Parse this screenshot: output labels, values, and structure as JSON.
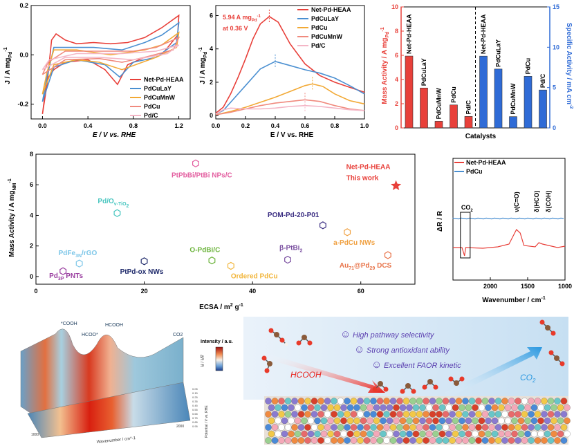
{
  "chart_data": [
    {
      "id": "cv",
      "type": "line",
      "xlabel": "E / V vs. RHE",
      "ylabel": "J / A mg_Pd^-1",
      "xlim": [
        -0.1,
        1.3
      ],
      "ylim": [
        -0.26,
        0.2
      ],
      "xticks": [
        0.0,
        0.4,
        0.8,
        1.2
      ],
      "yticks": [
        -0.2,
        0.0,
        0.2
      ],
      "series": [
        {
          "name": "Net-Pd-HEAA",
          "color": "#e8403a",
          "points": [
            [
              0,
              -0.24
            ],
            [
              0.04,
              -0.12
            ],
            [
              0.08,
              0.06
            ],
            [
              0.12,
              0.085
            ],
            [
              0.2,
              0.06
            ],
            [
              0.3,
              0.045
            ],
            [
              0.45,
              0.05
            ],
            [
              0.6,
              0.045
            ],
            [
              0.75,
              0.05
            ],
            [
              0.9,
              0.07
            ],
            [
              1.05,
              0.11
            ],
            [
              1.2,
              0.16
            ],
            [
              1.19,
              0.08
            ],
            [
              1.05,
              0.0
            ],
            [
              0.9,
              -0.01
            ],
            [
              0.75,
              -0.04
            ],
            [
              0.66,
              -0.12
            ],
            [
              0.55,
              -0.06
            ],
            [
              0.4,
              -0.02
            ],
            [
              0.2,
              -0.03
            ],
            [
              0.1,
              -0.06
            ],
            [
              0.04,
              -0.1
            ],
            [
              0,
              -0.24
            ]
          ]
        },
        {
          "name": "PdCuLaY",
          "color": "#4a8fd1",
          "points": [
            [
              0,
              -0.19
            ],
            [
              0.04,
              -0.09
            ],
            [
              0.1,
              0.03
            ],
            [
              0.25,
              0.03
            ],
            [
              0.45,
              0.03
            ],
            [
              0.7,
              0.02
            ],
            [
              0.9,
              0.05
            ],
            [
              1.05,
              0.08
            ],
            [
              1.2,
              0.13
            ],
            [
              1.18,
              0.05
            ],
            [
              1.0,
              -0.01
            ],
            [
              0.8,
              -0.03
            ],
            [
              0.68,
              -0.09
            ],
            [
              0.55,
              -0.04
            ],
            [
              0.3,
              -0.02
            ],
            [
              0.1,
              -0.05
            ],
            [
              0,
              -0.19
            ]
          ]
        },
        {
          "name": "PdCuMnW",
          "color": "#f2a935",
          "points": [
            [
              0,
              -0.16
            ],
            [
              0.04,
              -0.07
            ],
            [
              0.1,
              0.02
            ],
            [
              0.3,
              0.02
            ],
            [
              0.6,
              0.0
            ],
            [
              0.9,
              0.02
            ],
            [
              1.05,
              0.04
            ],
            [
              1.2,
              0.09
            ],
            [
              1.18,
              0.03
            ],
            [
              1.0,
              -0.01
            ],
            [
              0.7,
              -0.06
            ],
            [
              0.5,
              -0.03
            ],
            [
              0.3,
              -0.02
            ],
            [
              0.1,
              -0.04
            ],
            [
              0,
              -0.16
            ]
          ]
        },
        {
          "name": "PdCu",
          "color": "#f08a7e",
          "points": [
            [
              0,
              -0.08
            ],
            [
              0.05,
              -0.03
            ],
            [
              0.2,
              0.015
            ],
            [
              0.5,
              0.015
            ],
            [
              0.8,
              0.015
            ],
            [
              1.0,
              0.03
            ],
            [
              1.2,
              0.07
            ],
            [
              1.15,
              0.02
            ],
            [
              0.9,
              -0.01
            ],
            [
              0.7,
              -0.03
            ],
            [
              0.5,
              -0.015
            ],
            [
              0.2,
              -0.02
            ],
            [
              0,
              -0.08
            ]
          ]
        },
        {
          "name": "Pd/C",
          "color": "#f4b6c6",
          "points": [
            [
              0,
              -0.06
            ],
            [
              0.06,
              -0.02
            ],
            [
              0.3,
              0.005
            ],
            [
              0.7,
              0.005
            ],
            [
              1.0,
              0.015
            ],
            [
              1.2,
              0.04
            ],
            [
              1.1,
              0.005
            ],
            [
              0.8,
              -0.02
            ],
            [
              0.5,
              -0.01
            ],
            [
              0.2,
              -0.01
            ],
            [
              0,
              -0.06
            ]
          ]
        }
      ]
    },
    {
      "id": "lsv",
      "type": "line",
      "xlabel": "E / V vs. RHE",
      "ylabel": "J / A mg_Pd^-1",
      "xlim": [
        0,
        1.0
      ],
      "ylim": [
        -0.2,
        6.6
      ],
      "xticks": [
        0.0,
        0.2,
        0.4,
        0.6,
        0.8,
        1.0
      ],
      "yticks": [
        0,
        2,
        4,
        6
      ],
      "annotation": [
        "5.94 A mg_Pd^-1",
        "at 0.36 V"
      ],
      "series": [
        {
          "name": "Net-Pd-HEAA",
          "color": "#e8403a",
          "points": [
            [
              0,
              0.15
            ],
            [
              0.05,
              0.5
            ],
            [
              0.1,
              1.3
            ],
            [
              0.15,
              2.3
            ],
            [
              0.2,
              3.4
            ],
            [
              0.25,
              4.6
            ],
            [
              0.3,
              5.5
            ],
            [
              0.36,
              5.94
            ],
            [
              0.42,
              5.6
            ],
            [
              0.5,
              4.3
            ],
            [
              0.6,
              3.1
            ],
            [
              0.7,
              2.4
            ],
            [
              0.8,
              2.0
            ],
            [
              0.9,
              1.7
            ],
            [
              1.0,
              1.4
            ]
          ]
        },
        {
          "name": "PdCuLaY",
          "color": "#4a8fd1",
          "points": [
            [
              0,
              0.1
            ],
            [
              0.05,
              0.3
            ],
            [
              0.1,
              0.8
            ],
            [
              0.2,
              1.8
            ],
            [
              0.3,
              2.8
            ],
            [
              0.4,
              3.25
            ],
            [
              0.5,
              3.0
            ],
            [
              0.6,
              2.75
            ],
            [
              0.7,
              2.55
            ],
            [
              0.8,
              2.25
            ],
            [
              0.9,
              1.8
            ],
            [
              1.0,
              1.3
            ]
          ]
        },
        {
          "name": "PdCu",
          "color": "#f2a935",
          "points": [
            [
              0,
              0.05
            ],
            [
              0.1,
              0.25
            ],
            [
              0.2,
              0.5
            ],
            [
              0.3,
              0.8
            ],
            [
              0.4,
              1.1
            ],
            [
              0.5,
              1.45
            ],
            [
              0.6,
              1.8
            ],
            [
              0.65,
              1.9
            ],
            [
              0.72,
              1.75
            ],
            [
              0.8,
              1.3
            ],
            [
              0.9,
              0.9
            ],
            [
              1.0,
              0.7
            ]
          ]
        },
        {
          "name": "PdCuMnW",
          "color": "#f08a7e",
          "points": [
            [
              0,
              0.05
            ],
            [
              0.1,
              0.2
            ],
            [
              0.2,
              0.4
            ],
            [
              0.3,
              0.6
            ],
            [
              0.4,
              0.75
            ],
            [
              0.5,
              0.85
            ],
            [
              0.6,
              0.95
            ],
            [
              0.7,
              0.85
            ],
            [
              0.8,
              0.6
            ],
            [
              0.9,
              0.4
            ],
            [
              1.0,
              0.3
            ]
          ]
        },
        {
          "name": "Pd/C",
          "color": "#f4b6c6",
          "points": [
            [
              0,
              0.1
            ],
            [
              0.05,
              0.35
            ],
            [
              0.1,
              0.45
            ],
            [
              0.2,
              0.4
            ],
            [
              0.3,
              0.4
            ],
            [
              0.4,
              0.45
            ],
            [
              0.5,
              0.55
            ],
            [
              0.6,
              0.6
            ],
            [
              0.7,
              0.55
            ],
            [
              0.8,
              0.45
            ],
            [
              0.9,
              0.35
            ],
            [
              1.0,
              0.3
            ]
          ]
        }
      ]
    },
    {
      "id": "activity",
      "type": "bar",
      "xlabel": "Catalysts",
      "ylabel_left": "Mass Activity / A mg_Pd^-1",
      "ylabel_right": "Specific Activity / mA cm^-2",
      "ylim_left": [
        0,
        10
      ],
      "ylim_right": [
        0,
        15
      ],
      "yticks_left": [
        0,
        2,
        4,
        6,
        8,
        10
      ],
      "yticks_right": [
        0,
        5,
        10,
        15
      ],
      "mass": {
        "color": "#e8403a",
        "categories": [
          "Net-Pd-HEAA",
          "PdCuLaY",
          "PdCuMnW",
          "PdCu",
          "Pd/C"
        ],
        "values": [
          5.94,
          3.3,
          0.55,
          1.9,
          0.95
        ]
      },
      "specific": {
        "color": "#2f6bd6",
        "categories": [
          "Net-Pd-HEAA",
          "PdCuLaY",
          "PdCuMnW",
          "PdCu",
          "Pd/C"
        ],
        "values": [
          8.9,
          7.3,
          1.4,
          6.4,
          4.7
        ]
      }
    },
    {
      "id": "ecsa",
      "type": "scatter",
      "xlabel": "ECSA / m^2 g^-1",
      "ylabel": "Mass Activity / A mg_NM^-1",
      "xlim": [
        0,
        70
      ],
      "ylim": [
        -0.5,
        8
      ],
      "xticks": [
        0,
        20,
        40,
        60
      ],
      "yticks": [
        0,
        2,
        4,
        6,
        8
      ],
      "points": [
        {
          "label": "Net-Pd-HEAA",
          "sub": "This work",
          "x": 66.5,
          "y": 5.94,
          "color": "#e8403a",
          "marker": "star"
        },
        {
          "label": "PtPbBi/PtBi NPs/C",
          "x": 29.5,
          "y": 7.4,
          "color": "#e35fa0",
          "marker": "hex"
        },
        {
          "label": "Pd/O_v-TiO_2",
          "x": 15,
          "y": 4.15,
          "color": "#48c6c0",
          "marker": "hex"
        },
        {
          "label": "POM-Pd-20-P01",
          "x": 53,
          "y": 3.35,
          "color": "#3c2f83",
          "marker": "hex"
        },
        {
          "label": "a-PdCu NWs",
          "x": 57.5,
          "y": 2.9,
          "color": "#f0a040",
          "marker": "hex"
        },
        {
          "label": "PdFe_3N/rGO",
          "x": 8,
          "y": 0.85,
          "color": "#7cc6e8",
          "marker": "hex"
        },
        {
          "label": "O-PdBi/C",
          "x": 32.5,
          "y": 1.05,
          "color": "#6cb43c",
          "marker": "hex"
        },
        {
          "label": "β-PtBi_2",
          "x": 46.5,
          "y": 1.1,
          "color": "#7a4fa0",
          "marker": "hex"
        },
        {
          "label": "Au_71@Pd_29 DCS",
          "x": 65,
          "y": 1.4,
          "color": "#e8744a",
          "marker": "hex"
        },
        {
          "label": "PtPd-ox NWs",
          "x": 20,
          "y": 1.0,
          "color": "#1f2a6b",
          "marker": "hex"
        },
        {
          "label": "Ordered PdCu",
          "x": 36,
          "y": 0.7,
          "color": "#f2b63c",
          "marker": "hex"
        },
        {
          "label": "Pd_3P PNTs",
          "x": 5,
          "y": 0.35,
          "color": "#9a3fa0",
          "marker": "hex"
        }
      ]
    },
    {
      "id": "ir",
      "type": "line",
      "xlabel": "Wavenumber / cm^-1",
      "ylabel": "ΔR / R",
      "xlim": [
        2500,
        1000
      ],
      "xticks": [
        2000,
        1500,
        1000
      ],
      "band_labels": [
        "CO2",
        "ν(C=O)",
        "δ(HCO)",
        "δ(COH)"
      ],
      "series": [
        {
          "name": "Net-Pd-HEAA",
          "color": "#e8403a"
        },
        {
          "name": "PdCu",
          "color": "#4a8fd1"
        }
      ]
    }
  ],
  "panel_e": {
    "colorbar_label": "Intensity / a.u.",
    "peak_labels": [
      "*COOH",
      "HCOO*",
      "HCOOH",
      "CO2"
    ],
    "z_label": "ΔR / R",
    "x_label": "Wavenumber / cm^-1",
    "y_label": "Potential / V vs. RHE",
    "x_tick_labels": [
      "1000",
      "2000"
    ],
    "y_tick_labels": [
      "0.05",
      "0.15",
      "0.25",
      "0.35",
      "0.45",
      "0.55",
      "0.65",
      "0.75",
      "0.85",
      "0.95"
    ]
  },
  "panel_f": {
    "features": [
      "High pathway selectivity",
      "Strong antioxidant ability",
      "Excellent FAOR kinetic"
    ],
    "reactant": "HCOOH",
    "product": "CO2"
  }
}
